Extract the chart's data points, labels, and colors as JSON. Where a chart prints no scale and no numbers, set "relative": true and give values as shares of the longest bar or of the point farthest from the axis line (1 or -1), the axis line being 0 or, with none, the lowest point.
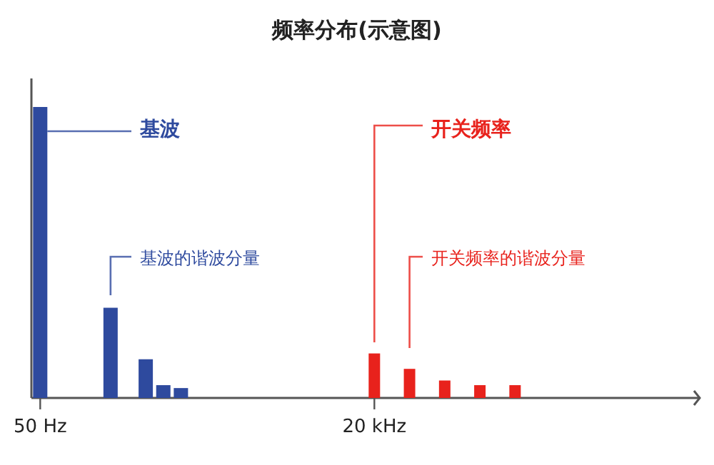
{
  "chart_data": {
    "type": "bar",
    "title": "频率分布(示意图)",
    "relative": true,
    "categories": [
      "50 Hz",
      null,
      null,
      null,
      null,
      null,
      null,
      null,
      null,
      null,
      null,
      null,
      null,
      null,
      null,
      null,
      null,
      null,
      null,
      "20 kHz",
      null,
      null,
      null,
      null,
      null,
      null,
      null,
      null,
      null,
      null,
      null,
      null,
      null,
      null,
      null,
      null,
      null,
      null
    ],
    "series": [
      {
        "color": "#2e4a9e",
        "values": [
          1,
          null,
          null,
          null,
          0.31,
          null,
          0.133,
          0.044,
          0.034,
          null,
          null,
          null,
          null,
          null,
          null,
          null,
          null,
          null,
          null,
          null,
          null,
          null,
          null,
          null,
          null,
          null,
          null,
          null,
          null,
          null,
          null,
          null,
          null,
          null,
          null,
          null,
          null,
          null
        ]
      },
      {
        "color": "#e8221c",
        "values": [
          null,
          null,
          null,
          null,
          null,
          null,
          null,
          null,
          null,
          null,
          null,
          null,
          null,
          null,
          null,
          null,
          null,
          null,
          null,
          0.153,
          null,
          0.1,
          null,
          0.06,
          null,
          0.044,
          null,
          0.044,
          null,
          null,
          null,
          null,
          null,
          null,
          null,
          null,
          null,
          null
        ]
      }
    ],
    "annotations": [
      "基波",
      "基波的谐波分量",
      "开关频率",
      "开关频率的谐波分量"
    ]
  }
}
